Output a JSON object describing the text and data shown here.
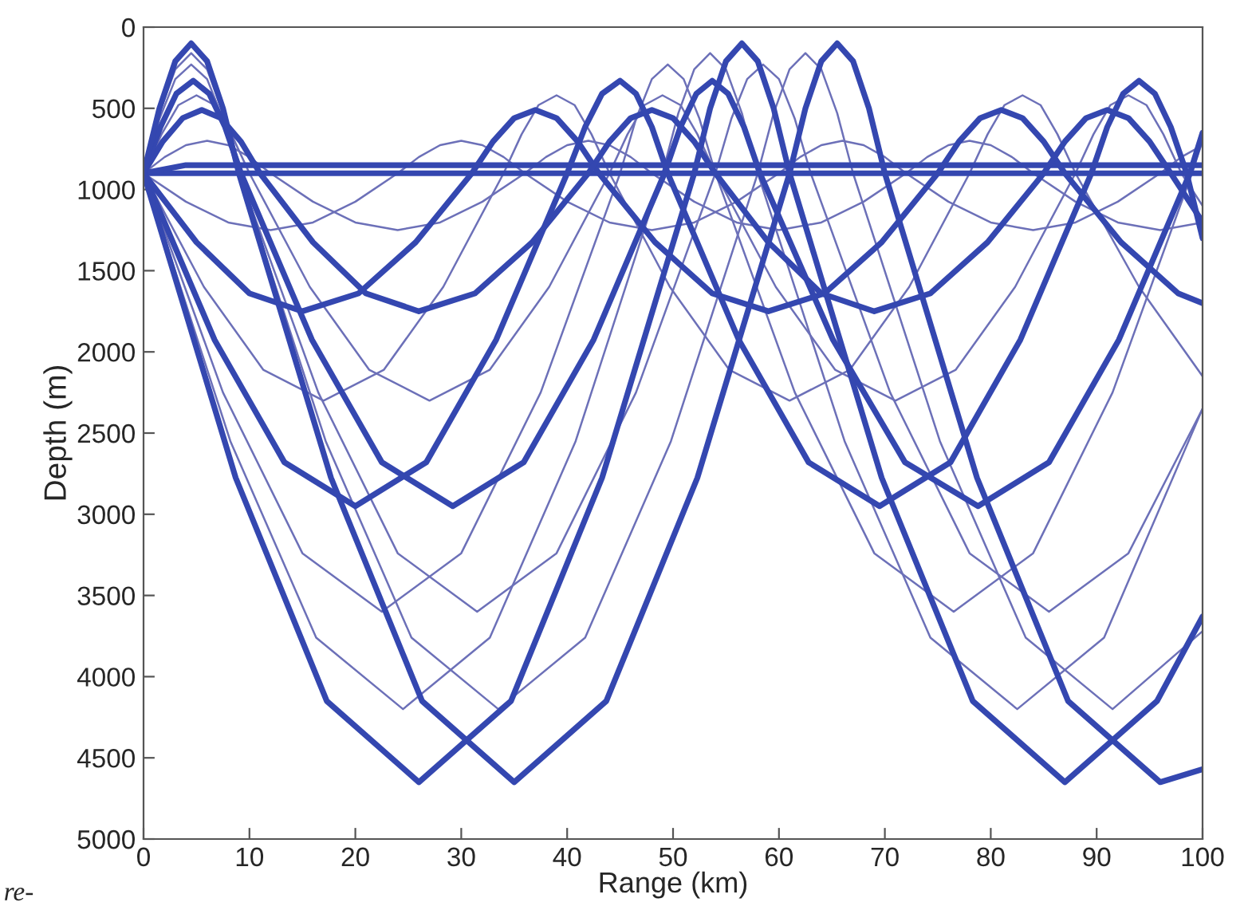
{
  "chart_data": {
    "type": "line",
    "xlabel": "Range (km)",
    "ylabel": "Depth (m)",
    "xlim": [
      0,
      100
    ],
    "xticks": [
      0,
      10,
      20,
      30,
      40,
      50,
      60,
      70,
      80,
      90,
      100
    ],
    "ylim": [
      5000,
      0
    ],
    "yticks": [
      0,
      500,
      1000,
      1500,
      2000,
      2500,
      3000,
      3500,
      4000,
      4500,
      5000
    ],
    "grid": false,
    "legend": false,
    "marker": "none",
    "line_style": "solid",
    "annotations": [
      "re-"
    ],
    "series": [
      {
        "color": "#6c70b8",
        "x": [
          0,
          4,
          8,
          12,
          16,
          20,
          24,
          26,
          28,
          30,
          32,
          34,
          36,
          40,
          44,
          48,
          52,
          56,
          60,
          62,
          64,
          66,
          68,
          70,
          72,
          76,
          80,
          84,
          88,
          92,
          96,
          98,
          100
        ],
        "values": [
          900,
          1075,
          1203,
          1250,
          1203,
          1075,
          900,
          800,
          727,
          700,
          727,
          800,
          900,
          1075,
          1203,
          1250,
          1203,
          1075,
          900,
          800,
          727,
          700,
          727,
          800,
          900,
          1075,
          1203,
          1250,
          1203,
          1075,
          900,
          800,
          727
        ]
      },
      {
        "color": "#6c70b8",
        "x": [
          0,
          2,
          4,
          6,
          8,
          10,
          12,
          16,
          20,
          24,
          28,
          32,
          36,
          38,
          40,
          42,
          44,
          46,
          48,
          52,
          56,
          60,
          64,
          68,
          72,
          74,
          76,
          78,
          80,
          82,
          84,
          88,
          92,
          96,
          100
        ],
        "values": [
          900,
          800,
          727,
          700,
          727,
          800,
          900,
          1075,
          1203,
          1250,
          1203,
          1075,
          900,
          800,
          727,
          700,
          727,
          800,
          900,
          1075,
          1203,
          1250,
          1203,
          1075,
          900,
          800,
          727,
          700,
          727,
          800,
          900,
          1075,
          1203,
          1250,
          1203
        ]
      },
      {
        "color": "#6c70b8",
        "x": [
          0,
          5.7,
          11.3,
          17,
          22.7,
          28.3,
          34,
          35.7,
          37.3,
          39,
          40.7,
          42.3,
          44,
          49.7,
          55.3,
          61,
          66.7,
          72.3,
          78,
          79.7,
          81.3,
          83,
          84.7,
          86.3,
          88,
          94,
          100
        ],
        "values": [
          900,
          1600,
          2110,
          2300,
          2110,
          1600,
          900,
          660,
          480,
          420,
          480,
          660,
          900,
          1600,
          2110,
          2300,
          2110,
          1600,
          900,
          660,
          480,
          420,
          480,
          660,
          900,
          1600,
          2150
        ]
      },
      {
        "color": "#6c70b8",
        "x": [
          0,
          1.7,
          3.3,
          5,
          6.7,
          8.3,
          10,
          15.7,
          21.3,
          27,
          32.7,
          38.3,
          44,
          45.7,
          47.3,
          49,
          50.7,
          52.3,
          54,
          59.7,
          65.3,
          71,
          76.7,
          82.3,
          88,
          89.7,
          91.3,
          93,
          94.7,
          96.3,
          98,
          100
        ],
        "values": [
          900,
          660,
          480,
          420,
          480,
          660,
          900,
          1600,
          2110,
          2300,
          2110,
          1600,
          900,
          660,
          480,
          420,
          480,
          660,
          900,
          1600,
          2110,
          2300,
          2110,
          1600,
          900,
          660,
          480,
          420,
          480,
          660,
          900,
          1100
        ]
      },
      {
        "color": "#6c70b8",
        "x": [
          0,
          7.5,
          15,
          22.5,
          30,
          37.5,
          45,
          46.5,
          48,
          49.5,
          51,
          52.5,
          54,
          61.5,
          69,
          76.5,
          84,
          91.5,
          99,
          100
        ],
        "values": [
          900,
          2250,
          3240,
          3600,
          3240,
          2250,
          900,
          565,
          320,
          230,
          320,
          565,
          900,
          2250,
          3240,
          3600,
          3240,
          2250,
          900,
          700
        ]
      },
      {
        "color": "#6c70b8",
        "x": [
          0,
          1.5,
          3,
          4.5,
          6,
          7.5,
          9,
          16.5,
          24,
          31.5,
          39,
          46.5,
          54,
          55.5,
          57,
          58.5,
          60,
          61.5,
          63,
          70.5,
          78,
          85.5,
          93,
          100
        ],
        "values": [
          900,
          565,
          320,
          230,
          320,
          565,
          900,
          2250,
          3240,
          3600,
          3240,
          2250,
          900,
          565,
          320,
          230,
          320,
          565,
          900,
          2250,
          3240,
          3600,
          3240,
          2350
        ]
      },
      {
        "color": "#6c70b8",
        "x": [
          0,
          8.2,
          16.3,
          24.5,
          32.7,
          40.8,
          49,
          50.5,
          52,
          53.5,
          55,
          56.5,
          58,
          66.2,
          74.3,
          82.5,
          90.7,
          100
        ],
        "values": [
          900,
          2550,
          3760,
          4200,
          3760,
          2550,
          900,
          530,
          260,
          160,
          260,
          530,
          900,
          2550,
          3760,
          4200,
          3760,
          2350
        ]
      },
      {
        "color": "#6c70b8",
        "x": [
          0,
          1.5,
          3,
          4.5,
          6,
          7.5,
          9,
          17.2,
          25.3,
          33.5,
          41.7,
          49.8,
          58,
          59.5,
          61,
          62.5,
          64,
          65.5,
          67,
          75.2,
          83.3,
          91.5,
          100
        ],
        "values": [
          900,
          530,
          260,
          160,
          260,
          530,
          900,
          2550,
          3760,
          4200,
          3760,
          2550,
          900,
          530,
          260,
          160,
          260,
          530,
          900,
          2550,
          3760,
          4200,
          3720
        ]
      },
      {
        "color": "#3447b0",
        "x": [
          0,
          100
        ],
        "values": [
          900,
          900
        ]
      },
      {
        "color": "#3447b0",
        "x": [
          0,
          4,
          100
        ],
        "values": [
          900,
          850,
          850
        ]
      },
      {
        "color": "#3447b0",
        "x": [
          0,
          5,
          10,
          15,
          20.3,
          25.7,
          31,
          33,
          35,
          37,
          39,
          41,
          43,
          48.3,
          53.7,
          59,
          64.3,
          69.7,
          75,
          77,
          79,
          81,
          83,
          85,
          87,
          92.3,
          97.7,
          100
        ],
        "values": [
          900,
          1325,
          1640,
          1750,
          1640,
          1325,
          900,
          705,
          560,
          510,
          560,
          705,
          900,
          1325,
          1640,
          1750,
          1640,
          1325,
          900,
          705,
          560,
          510,
          560,
          705,
          900,
          1325,
          1640,
          1700
        ]
      },
      {
        "color": "#3447b0",
        "x": [
          0,
          1.8,
          3.7,
          5.5,
          7.3,
          9.2,
          11,
          16,
          21,
          26,
          31.3,
          36.7,
          42,
          44,
          46,
          48,
          50,
          52,
          54,
          59,
          64,
          69,
          74.3,
          79.7,
          85,
          87,
          89,
          91,
          93,
          95,
          97,
          100
        ],
        "values": [
          900,
          705,
          560,
          510,
          560,
          705,
          900,
          1325,
          1640,
          1750,
          1640,
          1325,
          900,
          705,
          560,
          510,
          560,
          705,
          900,
          1325,
          1640,
          1750,
          1640,
          1325,
          900,
          705,
          560,
          510,
          560,
          705,
          900,
          1200
        ]
      },
      {
        "color": "#3447b0",
        "x": [
          0,
          6.7,
          13.3,
          20,
          26.7,
          33.3,
          40,
          41.7,
          43.3,
          45,
          46.5,
          48,
          49.5,
          56.2,
          62.8,
          69.5,
          76.2,
          82.8,
          89.5,
          91,
          92.5,
          94,
          95.5,
          97,
          98.5,
          100
        ],
        "values": [
          900,
          1925,
          2680,
          2950,
          2680,
          1925,
          900,
          615,
          410,
          330,
          410,
          615,
          900,
          1925,
          2680,
          2950,
          2680,
          1925,
          900,
          615,
          410,
          330,
          410,
          615,
          900,
          1300
        ]
      },
      {
        "color": "#3447b0",
        "x": [
          0,
          1.6,
          3.1,
          4.7,
          6.2,
          7.7,
          9.2,
          15.9,
          22.5,
          29.2,
          35.9,
          42.5,
          49.2,
          50.7,
          52.2,
          53.7,
          55.2,
          56.7,
          58.2,
          65.1,
          71.9,
          78.8,
          85.5,
          92.1,
          98.8,
          100
        ],
        "values": [
          900,
          615,
          410,
          330,
          410,
          615,
          900,
          1925,
          2680,
          2950,
          2680,
          1925,
          900,
          615,
          410,
          330,
          410,
          615,
          900,
          1925,
          2680,
          2950,
          2680,
          1925,
          900,
          650
        ]
      },
      {
        "color": "#3447b0",
        "x": [
          0,
          8.7,
          17.3,
          26,
          34.7,
          43.3,
          52,
          53.5,
          55,
          56.5,
          58,
          59.5,
          61,
          69.7,
          78.3,
          87,
          95.7,
          100
        ],
        "values": [
          900,
          2775,
          4150,
          4650,
          4150,
          2775,
          900,
          500,
          210,
          100,
          210,
          500,
          900,
          2775,
          4150,
          4650,
          4150,
          3630
        ]
      },
      {
        "color": "#3447b0",
        "x": [
          0,
          1.5,
          3,
          4.5,
          6,
          7.5,
          9,
          17.7,
          26.3,
          35,
          43.7,
          52.3,
          61,
          62.5,
          64,
          65.5,
          67,
          68.5,
          70,
          78.7,
          87.3,
          96,
          100
        ],
        "values": [
          900,
          500,
          210,
          100,
          210,
          500,
          900,
          2775,
          4150,
          4650,
          4150,
          2775,
          900,
          500,
          210,
          100,
          210,
          500,
          900,
          2775,
          4150,
          4650,
          4570
        ]
      }
    ]
  }
}
